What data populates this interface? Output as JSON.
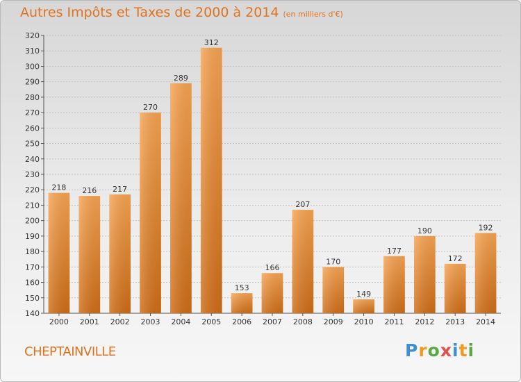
{
  "header": {
    "title": "Autres Impôts et Taxes de 2000 à 2014",
    "unit": "(en milliers d'€)"
  },
  "footer": {
    "commune": "CHEPTAINVILLE",
    "logo_text": "Proxiti"
  },
  "colors": {
    "title": "#e0721f",
    "bar_light": "#f7a452",
    "bar_dark": "#cf6d17"
  },
  "chart_data": {
    "type": "bar",
    "title": "Autres Impôts et Taxes de 2000 à 2014",
    "subtitle": "(en milliers d'€)",
    "xlabel": "",
    "ylabel": "",
    "categories": [
      "2000",
      "2001",
      "2002",
      "2003",
      "2004",
      "2005",
      "2006",
      "2007",
      "2008",
      "2009",
      "2010",
      "2011",
      "2012",
      "2013",
      "2014"
    ],
    "values": [
      218,
      216,
      217,
      270,
      289,
      312,
      153,
      166,
      207,
      170,
      149,
      177,
      190,
      172,
      192
    ],
    "ylim": [
      140,
      320
    ],
    "ytick_step": 10,
    "grid": true,
    "data_labels": true
  }
}
